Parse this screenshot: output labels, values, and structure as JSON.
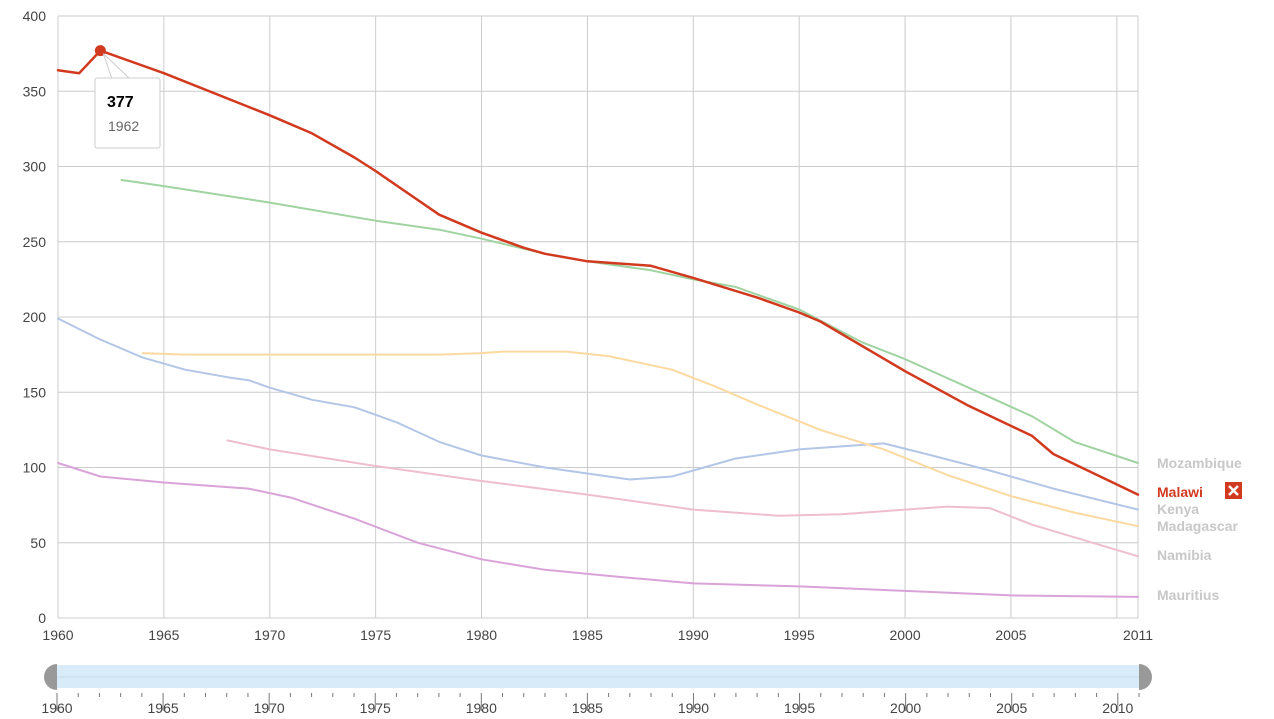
{
  "colors": {
    "Malawi": "#d13a1f",
    "Mozambique": "#9fd3a0",
    "Kenya": "#b3c6e7",
    "Madagascar": "#fcd9a0",
    "Namibia": "#efbdd0",
    "Mauritius": "#d9a3d9",
    "legend_muted": "#c8c8c8",
    "grid": "#cccccc",
    "slider_track": "#d8ebf8",
    "slider_handle": "#999999"
  },
  "tooltip": {
    "value": "377",
    "year": "1962"
  },
  "legend": {
    "Mozambique": "Mozambique",
    "Malawi": "Malawi",
    "Kenya": "Kenya",
    "Madagascar": "Madagascar",
    "Namibia": "Namibia",
    "Mauritius": "Mauritius",
    "remove_icon": "close-icon"
  },
  "slider": {
    "labels": [
      "1960",
      "1965",
      "1970",
      "1975",
      "1980",
      "1985",
      "1990",
      "1995",
      "2000",
      "2005",
      "2010"
    ],
    "range": [
      1960,
      2011
    ]
  },
  "chart_data": {
    "type": "line",
    "xlim": [
      1960,
      2011
    ],
    "ylim": [
      0,
      400
    ],
    "x_ticks": [
      1960,
      1965,
      1970,
      1975,
      1980,
      1985,
      1990,
      1995,
      2000,
      2005,
      2011
    ],
    "y_ticks": [
      0,
      50,
      100,
      150,
      200,
      250,
      300,
      350,
      400
    ],
    "grid": true,
    "legend_placement": "right",
    "highlighted_series": "Malawi",
    "highlighted_point": {
      "x": 1962,
      "y": 377
    },
    "series": [
      {
        "name": "Malawi",
        "x": [
          1960,
          1961,
          1962,
          1965,
          1970,
          1972,
          1974,
          1975,
          1978,
          1980,
          1982,
          1983,
          1985,
          1987,
          1988,
          1990,
          1993,
          1995,
          1996,
          2000,
          2003,
          2006,
          2007,
          2011
        ],
        "y": [
          364,
          362,
          377,
          362,
          334,
          322,
          306,
          297,
          268,
          256,
          246,
          242,
          237,
          235,
          234,
          226,
          213,
          203,
          197,
          164,
          141,
          121,
          109,
          82
        ]
      },
      {
        "name": "Mozambique",
        "x": [
          1963,
          1965,
          1970,
          1975,
          1978,
          1980,
          1983,
          1985,
          1988,
          1990,
          1992,
          1995,
          1998,
          2000,
          2003,
          2006,
          2008,
          2011
        ],
        "y": [
          291,
          287,
          276,
          264,
          258,
          252,
          242,
          237,
          231,
          225,
          220,
          205,
          183,
          172,
          153,
          134,
          117,
          103
        ]
      },
      {
        "name": "Kenya",
        "x": [
          1960,
          1962,
          1964,
          1966,
          1968,
          1969,
          1970,
          1972,
          1974,
          1976,
          1978,
          1980,
          1983,
          1985,
          1987,
          1989,
          1990,
          1992,
          1995,
          1997,
          1999,
          2001,
          2004,
          2007,
          2011
        ],
        "y": [
          199,
          185,
          173,
          165,
          160,
          158,
          153,
          145,
          140,
          130,
          117,
          108,
          100,
          96,
          92,
          94,
          98,
          106,
          112,
          114,
          116,
          109,
          98,
          86,
          72
        ]
      },
      {
        "name": "Madagascar",
        "x": [
          1964,
          1966,
          1970,
          1975,
          1978,
          1980,
          1981,
          1984,
          1986,
          1989,
          1991,
          1993,
          1996,
          1999,
          2002,
          2005,
          2008,
          2011
        ],
        "y": [
          176,
          175,
          175,
          175,
          175,
          176,
          177,
          177,
          174,
          165,
          154,
          142,
          125,
          112,
          95,
          81,
          70,
          61
        ]
      },
      {
        "name": "Namibia",
        "x": [
          1968,
          1970,
          1975,
          1980,
          1985,
          1990,
          1994,
          1997,
          2000,
          2002,
          2004,
          2006,
          2011
        ],
        "y": [
          118,
          112,
          101,
          91,
          82,
          72,
          68,
          69,
          72,
          74,
          73,
          62,
          41
        ]
      },
      {
        "name": "Mauritius",
        "x": [
          1960,
          1962,
          1965,
          1969,
          1971,
          1974,
          1977,
          1980,
          1983,
          1986,
          1990,
          1995,
          2000,
          2005,
          2011
        ],
        "y": [
          103,
          94,
          90,
          86,
          80,
          66,
          50,
          39,
          32,
          28,
          23,
          21,
          18,
          15,
          14
        ]
      }
    ]
  }
}
